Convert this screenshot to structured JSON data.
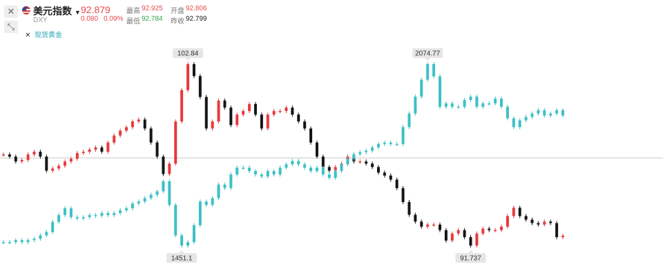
{
  "header": {
    "name": "美元指数",
    "code": "DXY",
    "price": 92.879,
    "change": "0.080",
    "change_pct": "0.09%",
    "stats": [
      {
        "label": "最高",
        "value": 92.925,
        "color": "#e84a4a"
      },
      {
        "label": "开盘",
        "value": 92.806,
        "color": "#e84a4a"
      },
      {
        "label": "最低",
        "value": 92.784,
        "color": "#2aa84a"
      },
      {
        "label": "昨收",
        "value": 92.799,
        "color": "#222222"
      }
    ]
  },
  "chart_data": {
    "type": "candlestick",
    "series": [
      {
        "up_color": "#e8393c",
        "down_color": "#151515",
        "values": [
          97.31,
          97.18,
          96.88,
          96.97,
          97.31,
          97.48,
          97.18,
          96.32,
          96.45,
          96.62,
          96.88,
          97.05,
          97.4,
          97.48,
          97.61,
          97.74,
          97.48,
          98.04,
          98.47,
          98.77,
          98.98,
          99.33,
          99.45,
          98.9,
          98.04,
          97.18,
          96.11,
          96.75,
          99.33,
          101.25,
          102.84,
          102.11,
          100.83,
          98.9,
          99.33,
          100.61,
          100.18,
          99.11,
          99.75,
          99.97,
          100.4,
          99.75,
          98.9,
          99.75,
          99.97,
          99.97,
          100.18,
          99.75,
          99.33,
          98.9,
          98.04,
          97.18,
          96.54,
          96.32,
          96.54,
          96.75,
          97.18,
          96.88,
          96.88,
          96.75,
          96.54,
          96.2,
          96.02,
          95.77,
          95.25,
          94.4,
          93.62,
          93.2,
          92.89,
          93.02,
          93.02,
          92.68,
          92.04,
          92.47,
          92.68,
          92.25,
          91.737,
          92.47,
          92.77,
          92.68,
          92.68,
          92.89,
          93.54,
          94.05,
          93.54,
          93.32,
          93.11,
          93.02,
          93.2,
          93.11,
          92.25,
          92.34
        ]
      },
      {
        "name": "现货黄金",
        "color": "#3cc0c6",
        "values": [
          1462.7,
          1462.7,
          1469.7,
          1462.7,
          1469.7,
          1474.4,
          1486.0,
          1497.6,
          1532.5,
          1555.8,
          1579.1,
          1548.8,
          1544.2,
          1548.8,
          1555.8,
          1553.5,
          1562.8,
          1555.8,
          1562.8,
          1572.1,
          1579.1,
          1595.4,
          1602.4,
          1614.0,
          1625.6,
          1637.3,
          1672.2,
          1590.7,
          1486.0,
          1451.1,
          1462.7,
          1520.9,
          1602.4,
          1590.7,
          1614.0,
          1660.5,
          1648.9,
          1695.4,
          1718.7,
          1718.7,
          1707.1,
          1695.4,
          1688.5,
          1707.1,
          1695.4,
          1718.7,
          1730.4,
          1742.0,
          1730.4,
          1718.7,
          1707.1,
          1718.7,
          1695.4,
          1683.8,
          1707.1,
          1730.4,
          1749.0,
          1765.3,
          1772.2,
          1776.9,
          1788.5,
          1800.2,
          1804.8,
          1800.2,
          1800.2,
          1858.3,
          1904.9,
          1963.1,
          2021.2,
          2074.77,
          2032.9,
          1928.2,
          1939.8,
          1928.2,
          1928.2,
          1951.4,
          1963.1,
          1928.2,
          1939.8,
          1939.8,
          1956.1,
          1928.2,
          1888.6,
          1858.3,
          1881.6,
          1893.2,
          1904.9,
          1916.5,
          1897.9,
          1904.9,
          1916.5,
          1897.9
        ]
      }
    ]
  }
}
